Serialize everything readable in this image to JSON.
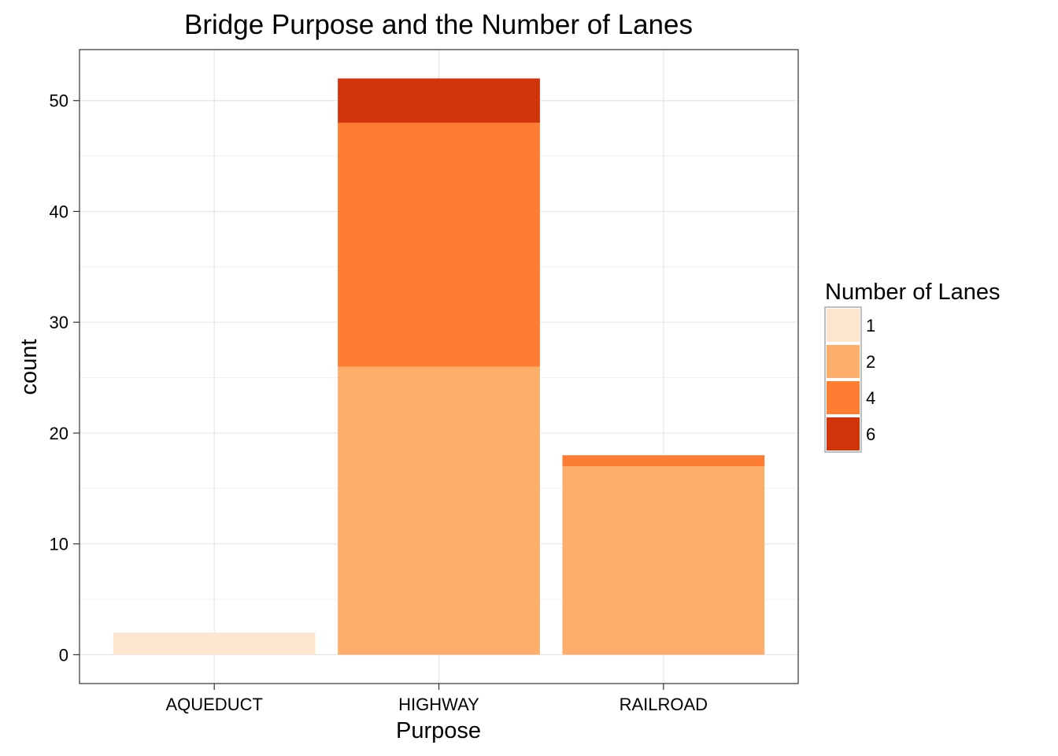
{
  "chart_data": {
    "type": "bar",
    "stacked": true,
    "title": "Bridge Purpose and the Number of Lanes",
    "xlabel": "Purpose",
    "ylabel": "count",
    "categories": [
      "AQUEDUCT",
      "HIGHWAY",
      "RAILROAD"
    ],
    "series": [
      {
        "name": "1",
        "color": "#FEE6CE",
        "values": [
          2,
          0,
          0
        ]
      },
      {
        "name": "2",
        "color": "#FDAE6B",
        "values": [
          0,
          26,
          17
        ]
      },
      {
        "name": "4",
        "color": "#FD7E33",
        "values": [
          0,
          22,
          1
        ]
      },
      {
        "name": "6",
        "color": "#D13408",
        "values": [
          0,
          4,
          0
        ]
      }
    ],
    "ylim": [
      -2.6,
      54.6
    ],
    "yticks": [
      0,
      10,
      20,
      30,
      40,
      50
    ],
    "grid": true,
    "legend": {
      "title": "Number of Lanes",
      "placement": "right"
    }
  }
}
